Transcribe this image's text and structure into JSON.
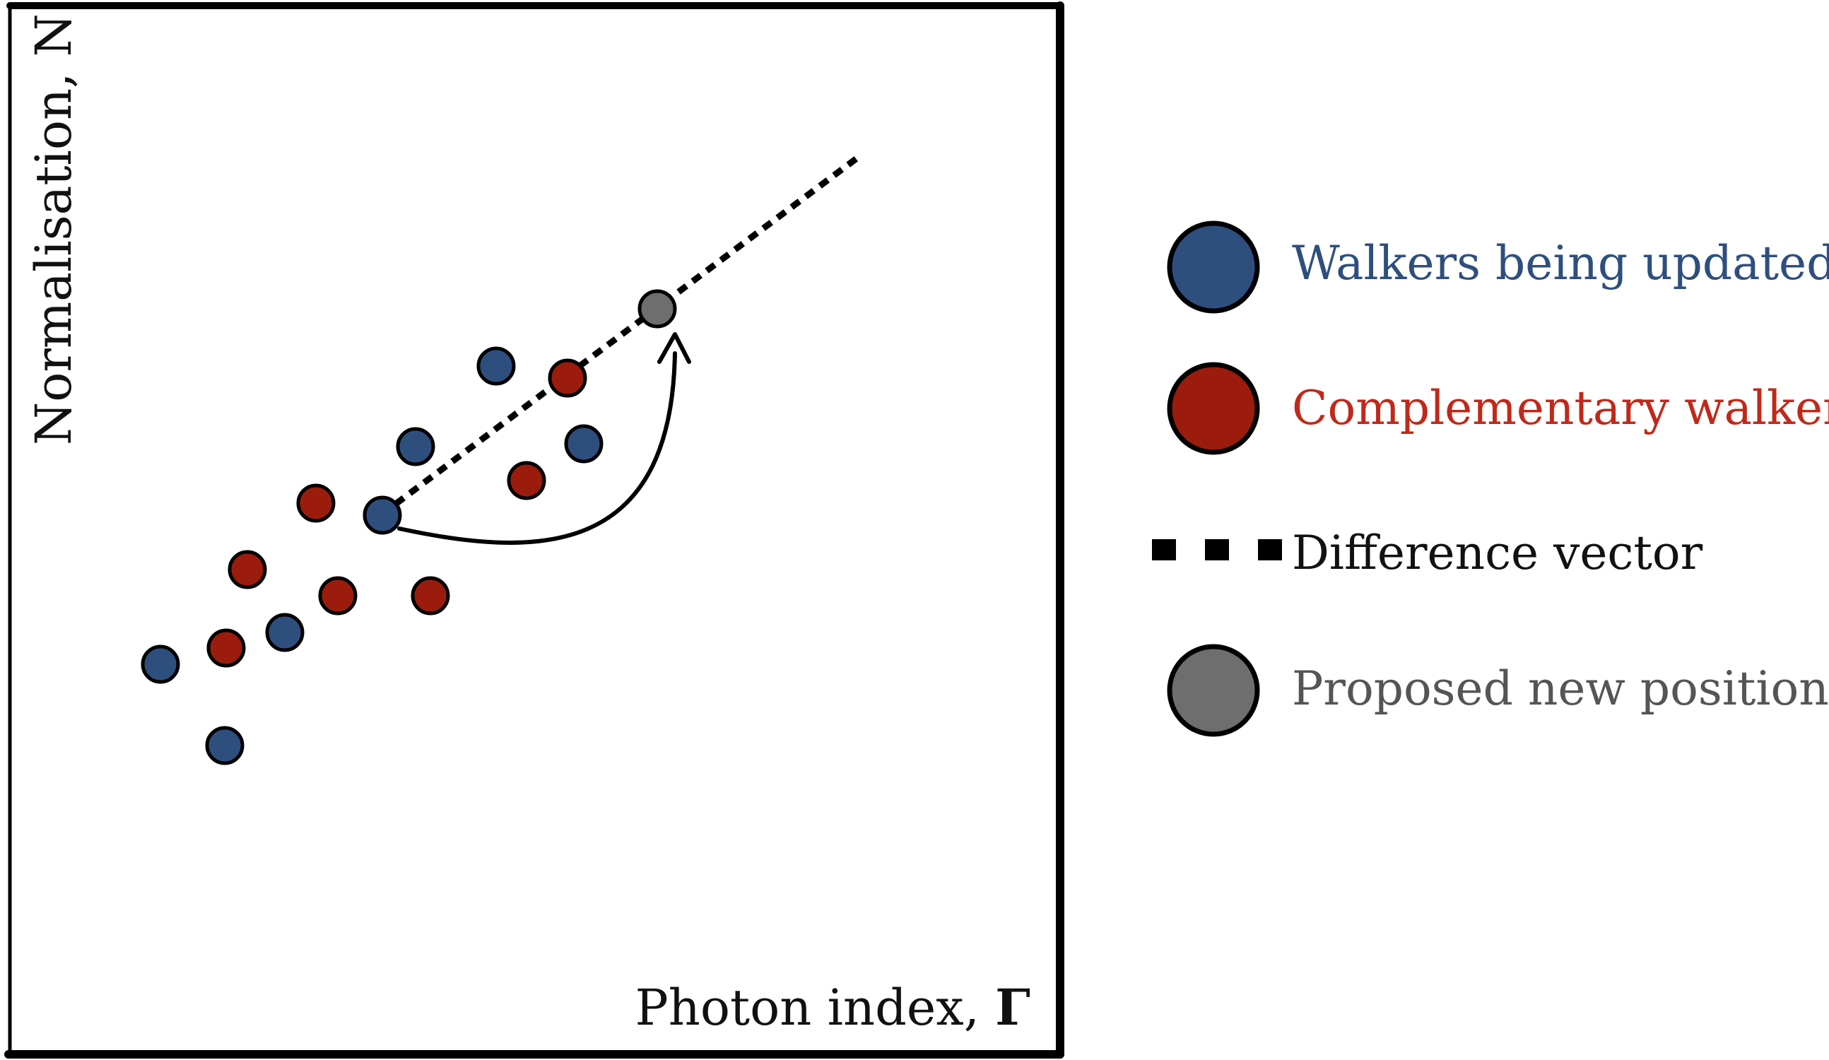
{
  "axes": {
    "x_label": "Photon index, ",
    "x_symbol": "Γ",
    "y_label": "Normalisation, N"
  },
  "legend": {
    "items": [
      {
        "label": "Walkers being updated",
        "color": "#2e4f7e",
        "text_color": "#2e4f7e",
        "marker": "circle"
      },
      {
        "label": "Complementary walkers",
        "color": "#9b1c0c",
        "text_color": "#c0291a",
        "marker": "circle"
      },
      {
        "label": "Difference vector",
        "color": "#000000",
        "text_color": "#111111",
        "marker": "dashed-line"
      },
      {
        "label": "Proposed new position",
        "color": "#6e6e6e",
        "text_color": "#555555",
        "marker": "circle"
      }
    ]
  },
  "colors": {
    "walker_blue": "#2e4f7e",
    "walker_red": "#9b1c0c",
    "proposed_gray": "#6e6e6e",
    "outline": "#000000"
  },
  "arrow": {
    "from": "active-walker",
    "to": "proposed-position",
    "style": "curved-arrow"
  }
}
